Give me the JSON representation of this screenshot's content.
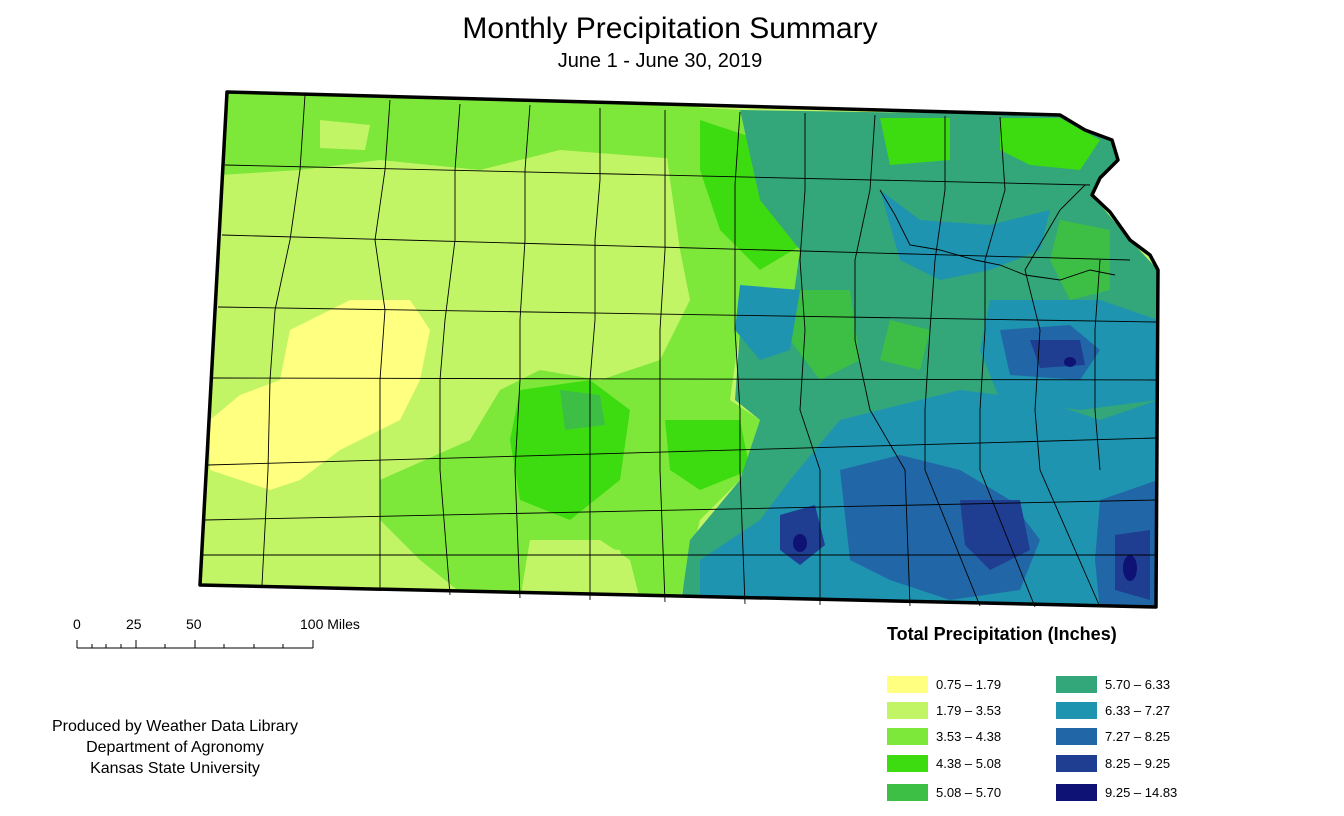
{
  "title": "Monthly Precipitation Summary",
  "subtitle": "June 1 - June 30, 2019",
  "scale_bar": {
    "ticks": [
      "0",
      "25",
      "50",
      "100 Miles"
    ]
  },
  "credits": [
    "Produced by Weather Data Library",
    "Department of Agronomy",
    "Kansas State University"
  ],
  "legend": {
    "title": "Total Precipitation (Inches)",
    "classes": [
      {
        "label": "0.75 – 1.79",
        "color": "#ffff80"
      },
      {
        "label": "1.79 – 3.53",
        "color": "#c2f566"
      },
      {
        "label": "3.53 – 4.38",
        "color": "#7ee83a"
      },
      {
        "label": "4.38 – 5.08",
        "color": "#3ddc10"
      },
      {
        "label": "5.08 – 5.70",
        "color": "#3dbf45"
      },
      {
        "label": "5.70 – 6.33",
        "color": "#33a67a"
      },
      {
        "label": "6.33 – 7.27",
        "color": "#1f94b0"
      },
      {
        "label": "7.27 – 8.25",
        "color": "#2166a6"
      },
      {
        "label": "8.25 – 9.25",
        "color": "#1f3d91"
      },
      {
        "label": "9.25 – 14.83",
        "color": "#0f1275"
      }
    ]
  }
}
